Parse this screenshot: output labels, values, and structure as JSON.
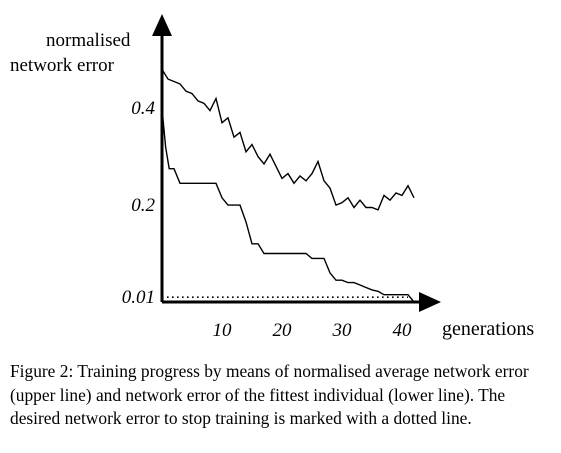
{
  "chart_data": {
    "type": "line",
    "ylabel_lines": [
      "normalised",
      "network error"
    ],
    "xlabel": "generations",
    "x_ticks": [
      10,
      20,
      30,
      40
    ],
    "y_ticks": [
      {
        "value": 0.4,
        "label": "0.4"
      },
      {
        "value": 0.2,
        "label": "0.2"
      },
      {
        "value": 0.01,
        "label": "0.01"
      }
    ],
    "xlim": [
      0,
      44
    ],
    "ylim": [
      0,
      0.52
    ],
    "series": [
      {
        "name": "",
        "style": "solid",
        "x": [
          0,
          1,
          2,
          3,
          4,
          5,
          6,
          7,
          8,
          9,
          10,
          11,
          12,
          13,
          14,
          15,
          16,
          17,
          18,
          19,
          20,
          21,
          22,
          23,
          24,
          25,
          26,
          27,
          28,
          29,
          30,
          31,
          32,
          33,
          34,
          35,
          36,
          37,
          38,
          39,
          40,
          41,
          42
        ],
        "y": [
          0.48,
          0.46,
          0.455,
          0.45,
          0.435,
          0.43,
          0.415,
          0.41,
          0.395,
          0.42,
          0.37,
          0.38,
          0.34,
          0.35,
          0.31,
          0.325,
          0.3,
          0.285,
          0.305,
          0.28,
          0.255,
          0.265,
          0.245,
          0.26,
          0.25,
          0.265,
          0.29,
          0.25,
          0.235,
          0.2,
          0.205,
          0.215,
          0.195,
          0.21,
          0.195,
          0.195,
          0.19,
          0.22,
          0.21,
          0.225,
          0.22,
          0.24,
          0.215
        ]
      },
      {
        "name": "",
        "style": "solid",
        "x": [
          0,
          0.6,
          1.2,
          2,
          3,
          4,
          5,
          6,
          7,
          8,
          9,
          10,
          11,
          12,
          13,
          14,
          15,
          16,
          17,
          18,
          19,
          20,
          21,
          22,
          23,
          24,
          25,
          26,
          27,
          28,
          29,
          30,
          31,
          32,
          33,
          34,
          35,
          36,
          37,
          38,
          39,
          40,
          41,
          42
        ],
        "y": [
          0.4,
          0.32,
          0.275,
          0.275,
          0.245,
          0.245,
          0.245,
          0.245,
          0.245,
          0.245,
          0.245,
          0.215,
          0.2,
          0.2,
          0.2,
          0.165,
          0.12,
          0.12,
          0.1,
          0.1,
          0.1,
          0.1,
          0.1,
          0.1,
          0.1,
          0.1,
          0.09,
          0.09,
          0.09,
          0.06,
          0.045,
          0.045,
          0.04,
          0.04,
          0.035,
          0.03,
          0.025,
          0.022,
          0.015,
          0.015,
          0.015,
          0.015,
          0.015,
          0.0
        ]
      },
      {
        "name": "",
        "style": "dotted",
        "x": [
          0,
          41
        ],
        "y": [
          0.01,
          0.01
        ]
      }
    ]
  },
  "caption": "Figure 2: Training progress by means of normalised average network error (upper line) and network error of the fittest individual (lower line). The desired network error to stop training is marked with a dotted line."
}
